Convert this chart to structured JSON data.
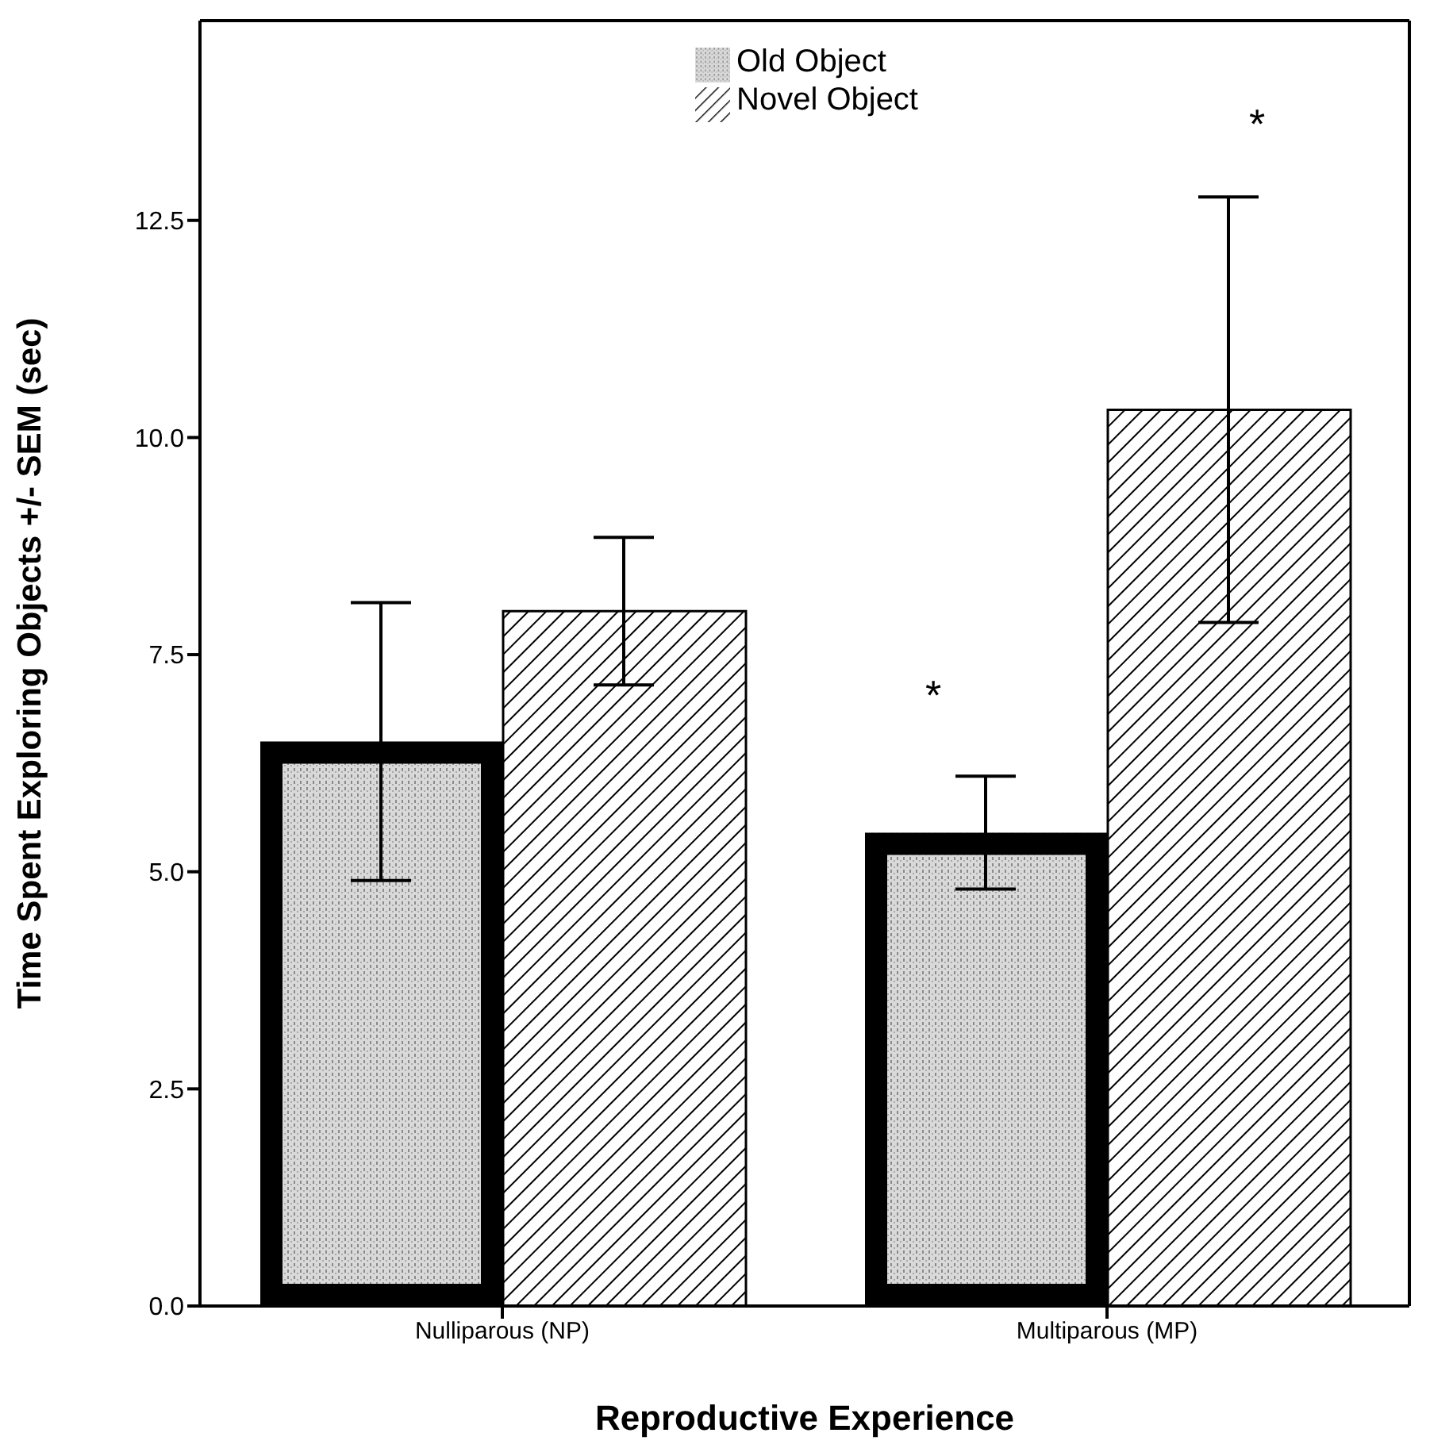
{
  "chart_data": {
    "type": "bar",
    "xlabel": "Reproductive Experience",
    "ylabel": "Time Spent Exploring Objects +/- SEM (sec)",
    "categories": [
      "Nulliparous (NP)",
      "Multiparous (MP)"
    ],
    "series": [
      {
        "name": "Old Object",
        "color": "#000000",
        "values": [
          6.5,
          5.45
        ],
        "errors": [
          1.6,
          0.65
        ]
      },
      {
        "name": "Novel Object",
        "color": "#000000",
        "values": [
          8.0,
          10.32
        ],
        "errors": [
          0.85,
          2.45
        ]
      }
    ],
    "ylim": [
      0,
      14.8
    ],
    "yticks": [
      {
        "value": 0,
        "label": "0.0"
      },
      {
        "value": 2.5,
        "label": "2.5"
      },
      {
        "value": 5,
        "label": "5.0"
      },
      {
        "value": 7.5,
        "label": "7.5"
      },
      {
        "value": 10,
        "label": "10.0"
      },
      {
        "value": 12.5,
        "label": "12.5"
      }
    ],
    "annotations": [
      "*",
      "*"
    ],
    "grid": false,
    "legend": "top"
  }
}
